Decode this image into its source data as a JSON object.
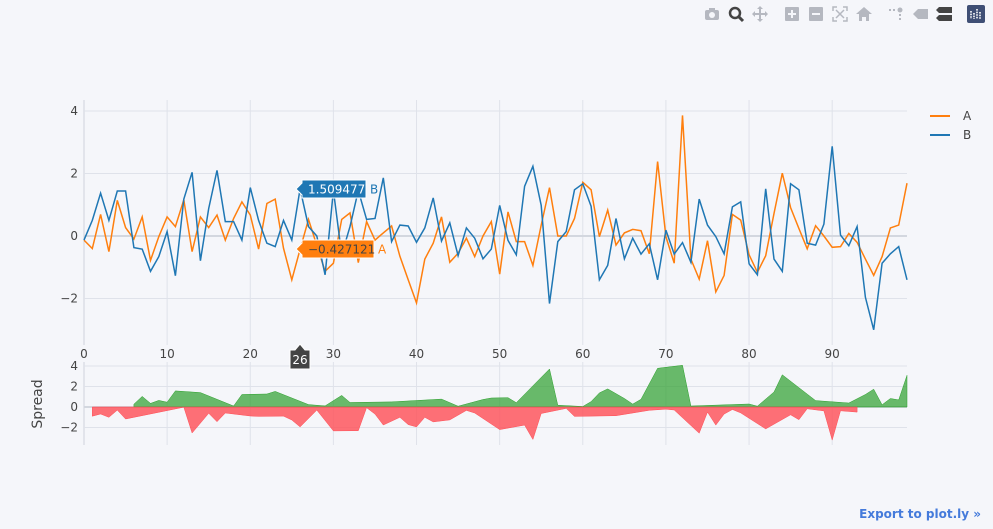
{
  "modebar": [
    {
      "name": "camera-icon",
      "title": "Download plot as a png",
      "active": false
    },
    {
      "name": "zoom-icon",
      "title": "Zoom",
      "active": true
    },
    {
      "name": "pan-icon",
      "title": "Pan",
      "active": false
    },
    {
      "name": "zoom-in-icon",
      "title": "Zoom in",
      "active": false
    },
    {
      "name": "zoom-out-icon",
      "title": "Zoom out",
      "active": false
    },
    {
      "name": "autoscale-icon",
      "title": "Autoscale",
      "active": false
    },
    {
      "name": "home-icon",
      "title": "Reset axes",
      "active": false
    },
    {
      "name": "spikelines-icon",
      "title": "Toggle Spike Lines",
      "active": false
    },
    {
      "name": "hover-closest-icon",
      "title": "Show closest data on hover",
      "active": false
    },
    {
      "name": "hover-compare-icon",
      "title": "Compare data on hover",
      "active": true
    },
    {
      "name": "plotly-logo-icon",
      "title": "Produced with Plotly",
      "active": false
    }
  ],
  "export_link": "Export to plot.ly »",
  "colors": {
    "A": "#ff7f0e",
    "B": "#1f77b4",
    "spread_pos": "#2ca02c",
    "spread_neg": "#ff4d55",
    "grid": "#dfe2ea",
    "background": "#f5f6fa"
  },
  "chart_data": [
    {
      "type": "line",
      "x_range": [
        0,
        99
      ],
      "ylim": [
        -3.5,
        4.35
      ],
      "x_ticks": [
        "0",
        "10",
        "20",
        "30",
        "40",
        "50",
        "60",
        "70",
        "80",
        "90"
      ],
      "y_ticks": [
        "4",
        "2",
        "0",
        "−2"
      ],
      "grid": true,
      "legend_placement": "top-right",
      "series": [
        {
          "name": "A",
          "color": "#ff7f0e",
          "values": [
            -0.13,
            -0.4,
            0.69,
            -0.5,
            1.14,
            0.27,
            -0.1,
            0.61,
            -0.78,
            -0.02,
            0.61,
            0.3,
            1.16,
            -0.5,
            0.61,
            0.27,
            0.67,
            -0.13,
            0.56,
            1.09,
            0.67,
            -0.42,
            1.04,
            1.18,
            -0.39,
            -1.4,
            -0.427121,
            0.53,
            -0.3,
            -1.13,
            -0.87,
            0.53,
            0.74,
            -0.85,
            0.46,
            -0.13,
            0.1,
            0.32,
            -0.65,
            -1.4,
            -2.14,
            -0.74,
            -0.23,
            0.61,
            -0.84,
            -0.55,
            -0.07,
            -0.66,
            0,
            0.46,
            -1.22,
            0.77,
            -0.18,
            -0.18,
            -0.94,
            0.35,
            1.55,
            0,
            0,
            0.56,
            1.72,
            1.48,
            -0.02,
            0.83,
            -0.29,
            0.1,
            0.21,
            0.17,
            -0.57,
            2.38,
            -0.02,
            -0.87,
            3.86,
            -0.74,
            -1.38,
            -0.15,
            -1.79,
            -1.26,
            0.69,
            0.51,
            -0.6,
            -1.16,
            -0.63,
            0.72,
            2.01,
            0.91,
            0.24,
            -0.41,
            0.33,
            0,
            -0.36,
            -0.34,
            0.08,
            -0.2,
            -0.74,
            -1.26,
            -0.66,
            0.26,
            0.35,
            1.69
          ]
        },
        {
          "name": "B",
          "color": "#1f77b4",
          "values": [
            -0.13,
            0.5,
            1.37,
            0.5,
            1.44,
            1.44,
            -0.37,
            -0.42,
            -1.13,
            -0.66,
            0.14,
            -1.27,
            1.18,
            2.04,
            -0.79,
            0.88,
            2.1,
            0.46,
            0.46,
            -0.13,
            1.55,
            0.5,
            -0.23,
            -0.34,
            0.5,
            -0.13,
            1.509477,
            0.3,
            0,
            -1.24,
            1.46,
            -0.6,
            0.3,
            1.46,
            0.53,
            0.56,
            1.86,
            -0.18,
            0.35,
            0.32,
            -0.2,
            0.26,
            1.22,
            -0.16,
            0.42,
            -0.63,
            0.26,
            -0.07,
            -0.73,
            -0.42,
            0.98,
            -0.14,
            -0.6,
            1.59,
            2.23,
            0.98,
            -2.16,
            -0.18,
            0.14,
            1.48,
            1.67,
            0.95,
            -1.4,
            -0.94,
            0.56,
            -0.73,
            -0.07,
            -0.58,
            -0.25,
            -1.4,
            0.19,
            -0.58,
            -0.21,
            -0.84,
            1.18,
            0.35,
            -0.02,
            -0.57,
            0.93,
            1.09,
            -0.89,
            -1.24,
            1.51,
            -0.74,
            -1.13,
            1.67,
            1.48,
            -0.23,
            -0.29,
            0.38,
            2.87,
            0.03,
            -0.31,
            0.3,
            -1.96,
            -3.0,
            -0.87,
            -0.57,
            -0.34,
            -1.4
          ]
        }
      ],
      "hover": {
        "x": "26",
        "labels": [
          {
            "series": "B",
            "value": "1.509477"
          },
          {
            "series": "A",
            "value": "−0.427121"
          }
        ]
      }
    },
    {
      "type": "area",
      "ylabel": "Spread",
      "x_range": [
        0,
        99
      ],
      "ylim": [
        -3.7,
        4.4
      ],
      "y_ticks": [
        "4",
        "2",
        "0",
        "−2"
      ],
      "grid": true,
      "values": [
        0,
        -0.9,
        -0.68,
        -1.0,
        -0.3,
        -1.17,
        0.27,
        1.03,
        0.35,
        0.64,
        0.47,
        1.57,
        -0.02,
        -2.54,
        1.4,
        -0.61,
        -1.43,
        -0.59,
        0.1,
        1.22,
        -0.88,
        -0.92,
        1.27,
        1.52,
        -0.89,
        -1.27,
        -1.94,
        0.23,
        -0.3,
        0.11,
        -2.33,
        1.13,
        0.44,
        -2.31,
        -0.07,
        -0.69,
        -1.76,
        0.5,
        -1.0,
        -1.72,
        -1.94,
        -1.0,
        -1.45,
        0.77,
        -1.26,
        0.08,
        -0.33,
        -0.59,
        0.73,
        0.88,
        -2.2,
        0.91,
        0.42,
        -1.77,
        -3.17,
        -0.63,
        3.71,
        0.18,
        -0.14,
        -0.92,
        0.05,
        0.53,
        1.38,
        1.77,
        -0.85,
        0.83,
        0.28,
        0.75,
        -0.32,
        3.78,
        -0.21,
        -0.29,
        4.07,
        0.1,
        -2.56,
        -0.5,
        -1.77,
        -0.69,
        -0.24,
        -0.58,
        0.29,
        0.08,
        -2.14,
        1.46,
        3.14,
        -0.76,
        -1.24,
        -0.18,
        0.62,
        -0.38,
        -3.23,
        -0.37,
        0.39,
        -0.5,
        1.22,
        1.74,
        0.21,
        0.83,
        0.69,
        3.09
      ]
    }
  ]
}
